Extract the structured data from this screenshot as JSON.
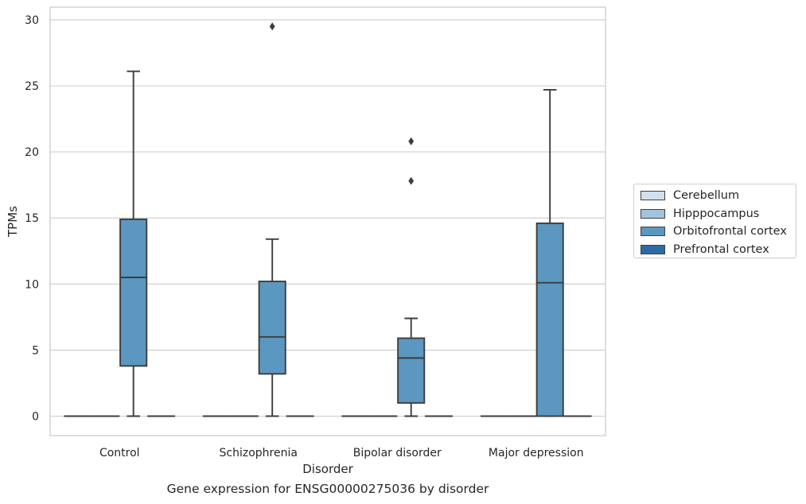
{
  "chart_data": {
    "type": "boxplot",
    "title": "Gene expression for ENSG00000275036 by disorder",
    "xlabel": "Disorder",
    "ylabel": "TPMs",
    "ylim": [
      -1.4,
      31
    ],
    "yticks": [
      0,
      5,
      10,
      15,
      20,
      25,
      30
    ],
    "categories": [
      "Control",
      "Schizophrenia",
      "Bipolar disorder",
      "Major depression"
    ],
    "grid": true,
    "legend_position": "right",
    "series": [
      {
        "name": "Cerebellum",
        "color": "#d0dfed",
        "boxes": [
          {
            "min": 0,
            "q1": 0,
            "median": 0,
            "q3": 0,
            "max": 0,
            "outliers": []
          },
          {
            "min": 0,
            "q1": 0,
            "median": 0,
            "q3": 0,
            "max": 0,
            "outliers": []
          },
          {
            "min": 0,
            "q1": 0,
            "median": 0,
            "q3": 0,
            "max": 0,
            "outliers": []
          },
          {
            "min": 0,
            "q1": 0,
            "median": 0,
            "q3": 0,
            "max": 0,
            "outliers": []
          }
        ]
      },
      {
        "name": "Hipppocampus",
        "color": "#a3c4de",
        "boxes": [
          {
            "min": 0,
            "q1": 0,
            "median": 0,
            "q3": 0,
            "max": 0,
            "outliers": []
          },
          {
            "min": 0,
            "q1": 0,
            "median": 0,
            "q3": 0,
            "max": 0,
            "outliers": []
          },
          {
            "min": 0,
            "q1": 0,
            "median": 0,
            "q3": 0,
            "max": 0,
            "outliers": []
          },
          {
            "min": 0,
            "q1": 0,
            "median": 0,
            "q3": 0,
            "max": 0,
            "outliers": []
          }
        ]
      },
      {
        "name": "Orbitofrontal cortex",
        "color": "#5b97c0",
        "boxes": [
          {
            "min": 0,
            "q1": 3.8,
            "median": 10.5,
            "q3": 14.9,
            "max": 26.1,
            "outliers": []
          },
          {
            "min": 0,
            "q1": 3.2,
            "median": 6.0,
            "q3": 10.2,
            "max": 13.4,
            "outliers": [
              29.5
            ]
          },
          {
            "min": 0,
            "q1": 1.0,
            "median": 4.4,
            "q3": 5.9,
            "max": 7.4,
            "outliers": [
              17.8,
              20.8
            ]
          },
          {
            "min": 0,
            "q1": 0,
            "median": 10.1,
            "q3": 14.6,
            "max": 24.7,
            "outliers": []
          }
        ]
      },
      {
        "name": "Prefrontal cortex",
        "color": "#2e6ba4",
        "boxes": [
          {
            "min": 0,
            "q1": 0,
            "median": 0,
            "q3": 0,
            "max": 0,
            "outliers": []
          },
          {
            "min": 0,
            "q1": 0,
            "median": 0,
            "q3": 0,
            "max": 0,
            "outliers": []
          },
          {
            "min": 0,
            "q1": 0,
            "median": 0,
            "q3": 0,
            "max": 0,
            "outliers": []
          },
          {
            "min": 0,
            "q1": 0,
            "median": 0,
            "q3": 0,
            "max": 0,
            "outliers": []
          }
        ]
      }
    ]
  }
}
